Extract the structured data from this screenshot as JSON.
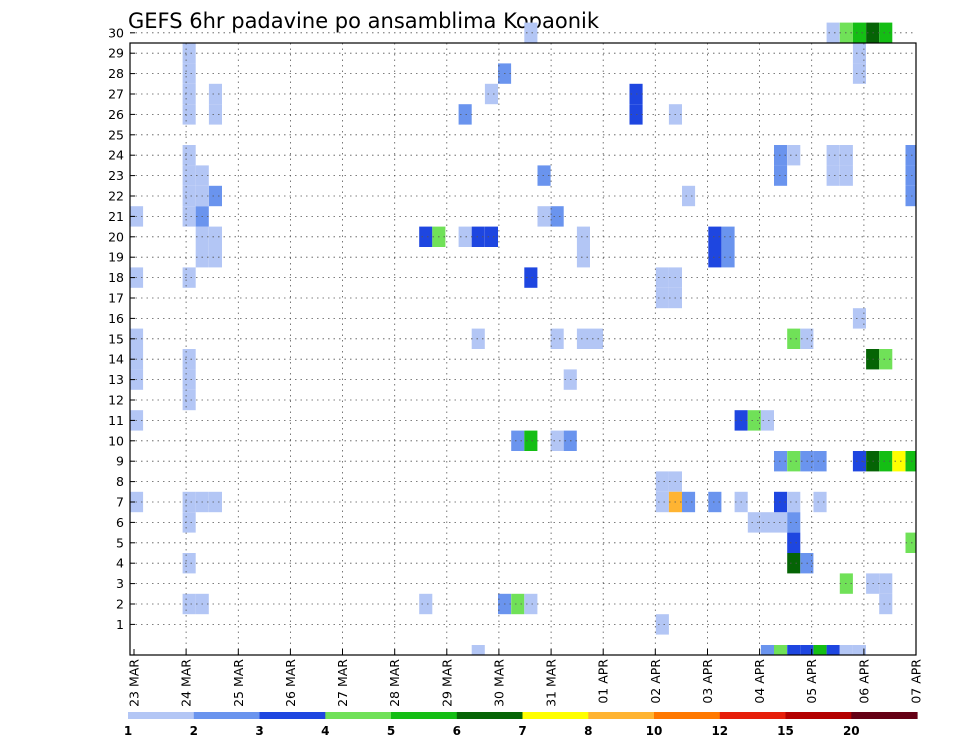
{
  "chart_data": {
    "type": "heatmap",
    "title": "GEFS 6hr padavine po ansamblima Kopaonik",
    "xlabel": "",
    "ylabel": "",
    "x_tick_labels": [
      "23 MAR",
      "24 MAR",
      "25 MAR",
      "26 MAR",
      "27 MAR",
      "28 MAR",
      "29 MAR",
      "30 MAR",
      "31 MAR",
      "01 APR",
      "02 APR",
      "03 APR",
      "04 APR",
      "05 APR",
      "06 APR",
      "07 APR"
    ],
    "y_tick_labels": [
      "1",
      "2",
      "3",
      "4",
      "5",
      "6",
      "7",
      "8",
      "9",
      "10",
      "11",
      "12",
      "13",
      "14",
      "15",
      "16",
      "17",
      "18",
      "19",
      "20",
      "21",
      "22",
      "23",
      "24",
      "25",
      "26",
      "27",
      "28",
      "29",
      "30"
    ],
    "x_range": [
      0,
      60
    ],
    "y_range": [
      0,
      30
    ],
    "time_step_hours": 6,
    "grid": "dotted",
    "colorbar": {
      "placement": "bottom",
      "tick_labels": [
        "1",
        "2",
        "3",
        "4",
        "5",
        "6",
        "7",
        "8",
        "10",
        "12",
        "15",
        "20"
      ],
      "colors": [
        "#b3c6f5",
        "#6a94ee",
        "#1e46e0",
        "#70e158",
        "#14be14",
        "#056405",
        "#ffff00",
        "#ffb432",
        "#ff7800",
        "#e61e0a",
        "#b40000",
        "#640014"
      ]
    },
    "cells": [
      [
        0,
        7,
        1
      ],
      [
        0,
        11,
        1
      ],
      [
        0,
        13,
        1
      ],
      [
        0,
        14,
        1
      ],
      [
        0,
        15,
        1
      ],
      [
        0,
        18,
        1
      ],
      [
        0,
        21,
        1
      ],
      [
        4,
        2,
        1
      ],
      [
        4,
        4,
        1
      ],
      [
        4,
        6,
        1
      ],
      [
        4,
        7,
        1
      ],
      [
        4,
        12,
        1
      ],
      [
        4,
        13,
        1
      ],
      [
        4,
        14,
        1
      ],
      [
        4,
        18,
        1
      ],
      [
        4,
        21,
        1
      ],
      [
        4,
        22,
        1
      ],
      [
        4,
        23,
        1
      ],
      [
        4,
        24,
        1
      ],
      [
        4,
        26,
        1
      ],
      [
        4,
        27,
        1
      ],
      [
        4,
        28,
        1
      ],
      [
        4,
        29,
        1
      ],
      [
        5,
        2,
        1
      ],
      [
        5,
        7,
        1
      ],
      [
        5,
        19,
        1
      ],
      [
        5,
        20,
        1
      ],
      [
        5,
        21,
        2
      ],
      [
        5,
        22,
        1
      ],
      [
        5,
        23,
        1
      ],
      [
        6,
        7,
        1
      ],
      [
        6,
        19,
        1
      ],
      [
        6,
        20,
        1
      ],
      [
        6,
        22,
        2
      ],
      [
        6,
        26,
        1
      ],
      [
        6,
        27,
        1
      ],
      [
        22,
        2,
        1
      ],
      [
        22,
        20,
        3
      ],
      [
        23,
        20,
        4
      ],
      [
        25,
        20,
        1
      ],
      [
        26,
        20,
        3
      ],
      [
        27,
        20,
        3
      ],
      [
        26,
        15,
        1
      ],
      [
        25,
        26,
        2
      ],
      [
        27,
        27,
        1
      ],
      [
        28,
        28,
        2
      ],
      [
        28,
        2,
        2
      ],
      [
        29,
        2,
        4
      ],
      [
        29,
        10,
        2
      ],
      [
        30,
        10,
        5
      ],
      [
        30,
        18,
        3
      ],
      [
        31,
        21,
        1
      ],
      [
        32,
        21,
        2
      ],
      [
        31,
        23,
        2
      ],
      [
        30,
        2,
        1
      ],
      [
        30,
        30,
        1
      ],
      [
        32,
        15,
        1
      ],
      [
        32,
        10,
        1
      ],
      [
        33,
        10,
        2
      ],
      [
        33,
        13,
        1
      ],
      [
        34,
        15,
        1
      ],
      [
        35,
        15,
        1
      ],
      [
        34,
        19,
        1
      ],
      [
        34,
        20,
        1
      ],
      [
        38,
        27,
        3
      ],
      [
        38,
        26,
        3
      ],
      [
        40,
        1,
        1
      ],
      [
        40,
        7,
        1
      ],
      [
        40,
        8,
        1
      ],
      [
        41,
        8,
        1
      ],
      [
        40,
        17,
        1
      ],
      [
        40,
        18,
        1
      ],
      [
        41,
        17,
        1
      ],
      [
        41,
        18,
        1
      ],
      [
        41,
        7,
        8
      ],
      [
        42,
        7,
        2
      ],
      [
        41,
        26,
        1
      ],
      [
        42,
        22,
        1
      ],
      [
        44,
        7,
        2
      ],
      [
        44,
        19,
        3
      ],
      [
        44,
        20,
        3
      ],
      [
        45,
        19,
        2
      ],
      [
        45,
        20,
        2
      ],
      [
        46,
        7,
        1
      ],
      [
        46,
        11,
        3
      ],
      [
        47,
        11,
        4
      ],
      [
        48,
        11,
        1
      ],
      [
        47,
        6,
        1
      ],
      [
        48,
        6,
        1
      ],
      [
        49,
        6,
        1
      ],
      [
        49,
        7,
        3
      ],
      [
        50,
        7,
        1
      ],
      [
        50,
        6,
        2
      ],
      [
        50,
        5,
        3
      ],
      [
        50,
        4,
        6
      ],
      [
        51,
        4,
        2
      ],
      [
        49,
        9,
        2
      ],
      [
        50,
        9,
        4
      ],
      [
        51,
        9,
        2
      ],
      [
        52,
        9,
        2
      ],
      [
        49,
        23,
        2
      ],
      [
        49,
        24,
        2
      ],
      [
        50,
        24,
        1
      ],
      [
        50,
        15,
        4
      ],
      [
        51,
        15,
        1
      ],
      [
        52,
        7,
        1
      ],
      [
        53,
        23,
        1
      ],
      [
        53,
        24,
        1
      ],
      [
        53,
        30,
        1
      ],
      [
        54,
        23,
        1
      ],
      [
        54,
        24,
        1
      ],
      [
        54,
        30,
        4
      ],
      [
        54,
        3,
        4
      ],
      [
        55,
        9,
        3
      ],
      [
        56,
        9,
        6
      ],
      [
        57,
        9,
        5
      ],
      [
        58,
        9,
        7
      ],
      [
        59,
        9,
        5
      ],
      [
        55,
        28,
        1
      ],
      [
        55,
        29,
        1
      ],
      [
        55,
        30,
        5
      ],
      [
        56,
        30,
        6
      ],
      [
        57,
        30,
        5
      ],
      [
        55,
        16,
        1
      ],
      [
        56,
        14,
        6
      ],
      [
        57,
        14,
        4
      ],
      [
        56,
        3,
        1
      ],
      [
        57,
        3,
        1
      ],
      [
        57,
        2,
        1
      ],
      [
        59,
        22,
        2
      ],
      [
        59,
        23,
        2
      ],
      [
        59,
        24,
        2
      ],
      [
        59,
        5,
        4
      ]
    ],
    "bottom_row_cells": [
      [
        26,
        1
      ],
      [
        48,
        2
      ],
      [
        49,
        4
      ],
      [
        50,
        3
      ],
      [
        51,
        3
      ],
      [
        52,
        5
      ],
      [
        53,
        3
      ],
      [
        54,
        1
      ],
      [
        55,
        1
      ]
    ]
  }
}
